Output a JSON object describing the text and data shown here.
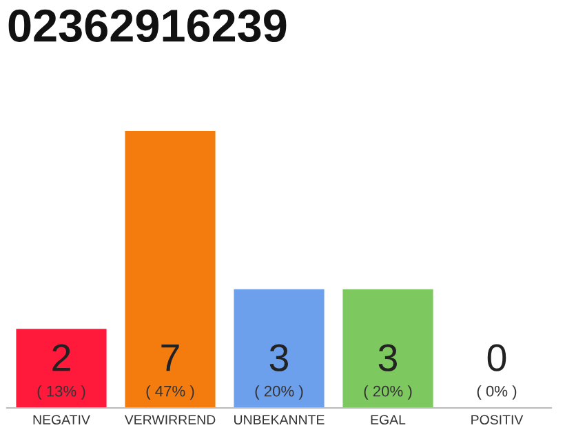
{
  "chart_data": {
    "type": "bar",
    "title": "02362916239",
    "categories": [
      "NEGATIV",
      "VERWIRREND",
      "UNBEKANNTE",
      "EGAL",
      "POSITIV"
    ],
    "values": [
      2,
      7,
      3,
      3,
      0
    ],
    "colors": [
      "#ff1a3c",
      "#f47c0e",
      "#6ca0ec",
      "#7dc95f",
      "#cccccc"
    ],
    "value_labels": [
      "2\n( 13% )",
      "7\n( 47% )",
      "3\n( 20% )",
      "3\n( 20% )",
      "0\n( 0% )"
    ],
    "tick_labels": "x",
    "grid": false,
    "legend": false
  }
}
